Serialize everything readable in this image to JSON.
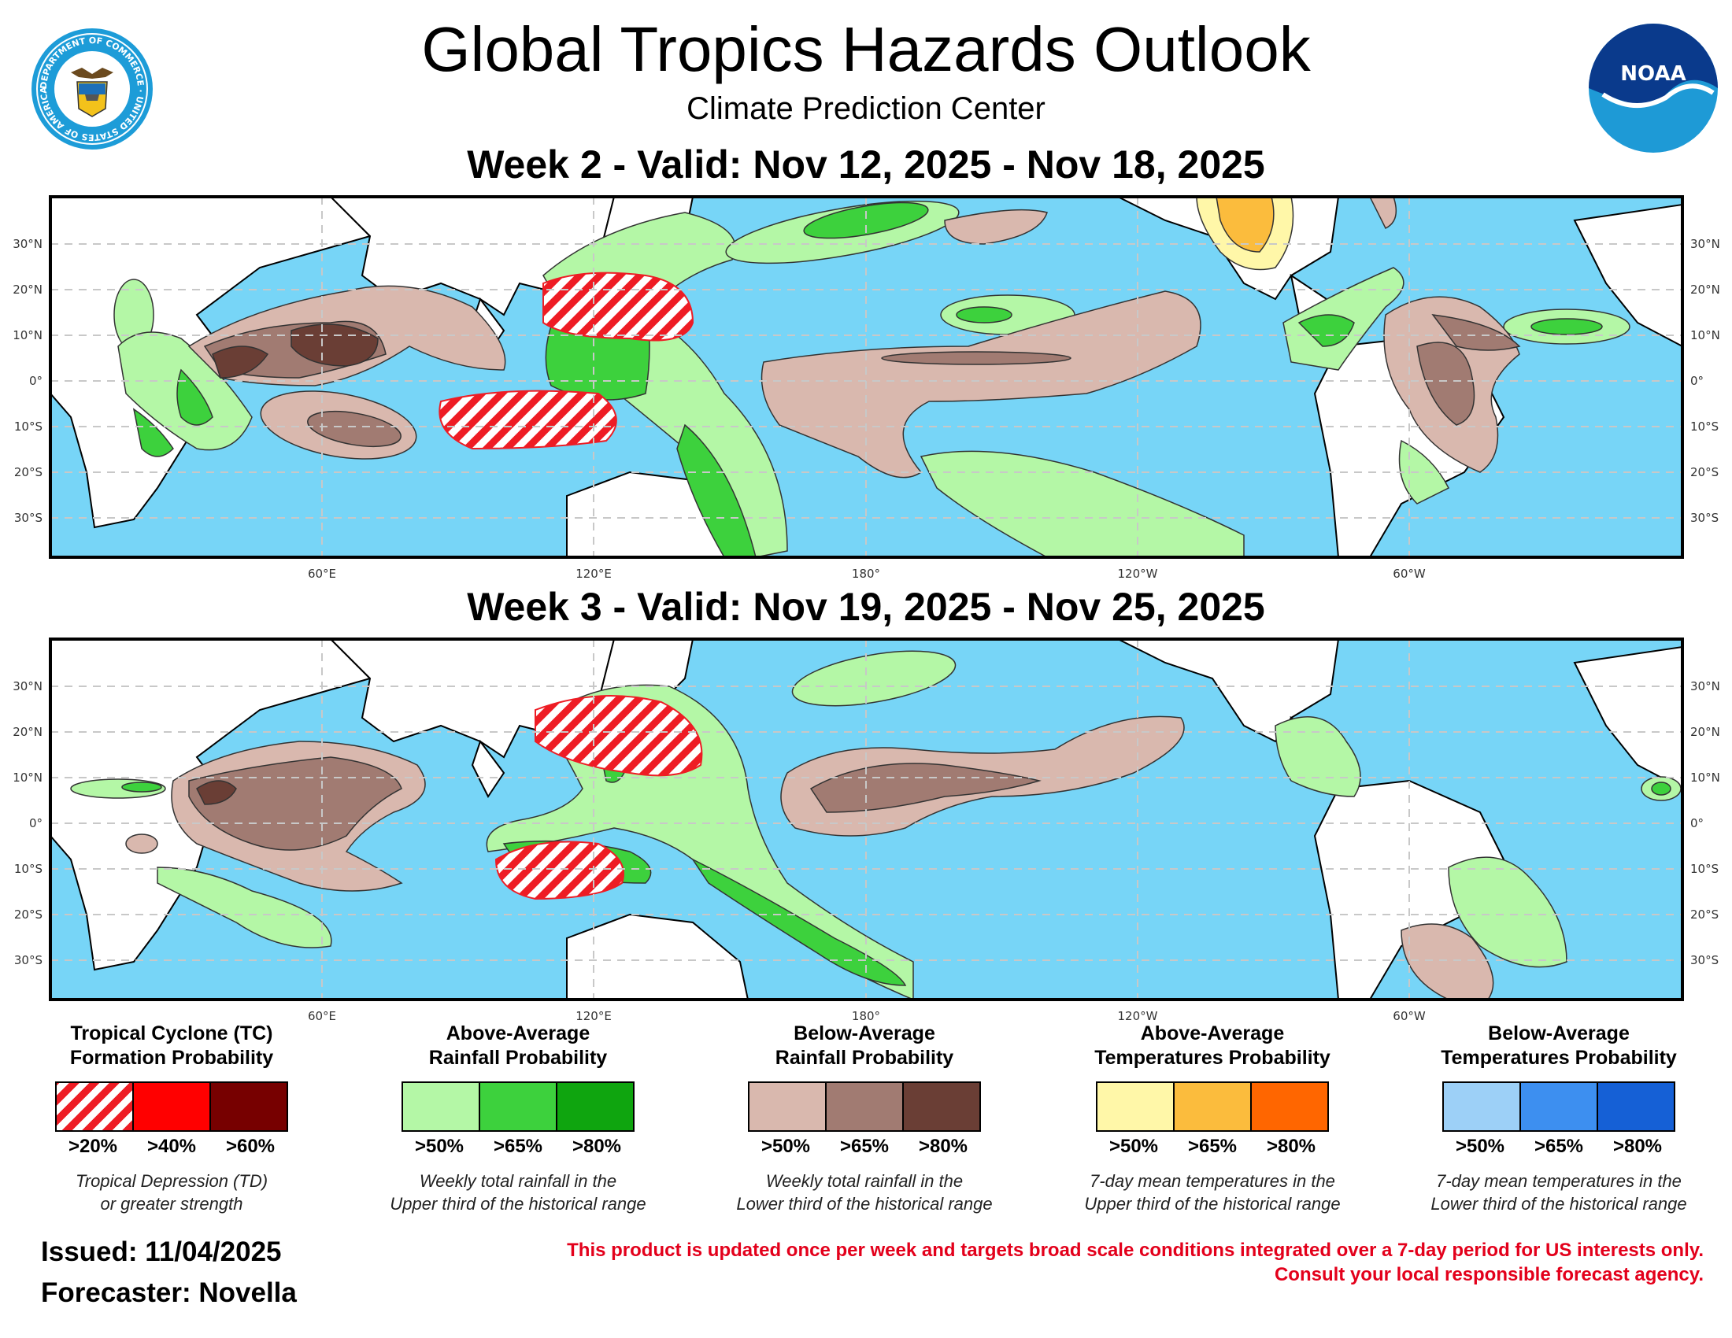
{
  "header": {
    "title": "Global Tropics Hazards Outlook",
    "subtitle": "Climate Prediction Center",
    "seal_text": "DEPARTMENT OF COMMERCE · UNITED STATES OF AMERICA",
    "noaa_logo_text": "NOAA"
  },
  "maps": {
    "week2": {
      "title": "Week 2 - Valid: Nov 12, 2025 - Nov 18, 2025"
    },
    "week3": {
      "title": "Week 3 - Valid: Nov 19, 2025 - Nov 25, 2025"
    },
    "lat_labels": [
      "30°N",
      "20°N",
      "10°N",
      "0°",
      "10°S",
      "20°S",
      "30°S"
    ],
    "lon_labels": [
      "60°E",
      "120°E",
      "180°",
      "120°W",
      "60°W"
    ],
    "colors": {
      "ocean": "#77d5f7",
      "land": "#ffffff",
      "tc_hatch": "#ee1c24",
      "rain_above_50": "#b4f7a6",
      "rain_above_65": "#3dd13d",
      "rain_below_50": "#d9b8ae",
      "rain_below_65": "#a17b72",
      "rain_below_80": "#6a3e35",
      "temp_above_50": "#fff7a8",
      "temp_above_65": "#fbbc3d"
    }
  },
  "legend": [
    {
      "title_line1": "Tropical Cyclone (TC)",
      "title_line2": "Formation Probability",
      "colors": [
        "hatch",
        "#ff0000",
        "#770000"
      ],
      "ticks": [
        ">20%",
        ">40%",
        ">60%"
      ],
      "desc_line1": "Tropical Depression (TD)",
      "desc_line2": "or greater strength"
    },
    {
      "title_line1": "Above-Average",
      "title_line2": "Rainfall Probability",
      "colors": [
        "#b4f7a6",
        "#3dd13d",
        "#0fa50f"
      ],
      "ticks": [
        ">50%",
        ">65%",
        ">80%"
      ],
      "desc_line1": "Weekly total rainfall in the",
      "desc_line2": "Upper third of the historical range"
    },
    {
      "title_line1": "Below-Average",
      "title_line2": "Rainfall Probability",
      "colors": [
        "#d9b8ae",
        "#a17b72",
        "#6a3e35"
      ],
      "ticks": [
        ">50%",
        ">65%",
        ">80%"
      ],
      "desc_line1": "Weekly total rainfall in the",
      "desc_line2": "Lower third of the historical range"
    },
    {
      "title_line1": "Above-Average",
      "title_line2": "Temperatures Probability",
      "colors": [
        "#fff7a8",
        "#fbbc3d",
        "#ff6600"
      ],
      "ticks": [
        ">50%",
        ">65%",
        ">80%"
      ],
      "desc_line1": "7-day mean temperatures in the",
      "desc_line2": "Upper third of the historical range"
    },
    {
      "title_line1": "Below-Average",
      "title_line2": "Temperatures Probability",
      "colors": [
        "#9dd0f7",
        "#3d8ff0",
        "#1560d6"
      ],
      "ticks": [
        ">50%",
        ">65%",
        ">80%"
      ],
      "desc_line1": "7-day mean temperatures in the",
      "desc_line2": "Lower third of the historical range"
    }
  ],
  "footer": {
    "issued": "Issued: 11/04/2025",
    "forecaster": "Forecaster: Novella",
    "disclaimer_line1": "This product is updated once per week and targets broad scale conditions integrated over a 7-day period for US interests only.",
    "disclaimer_line2": "Consult your local responsible forecast agency."
  }
}
